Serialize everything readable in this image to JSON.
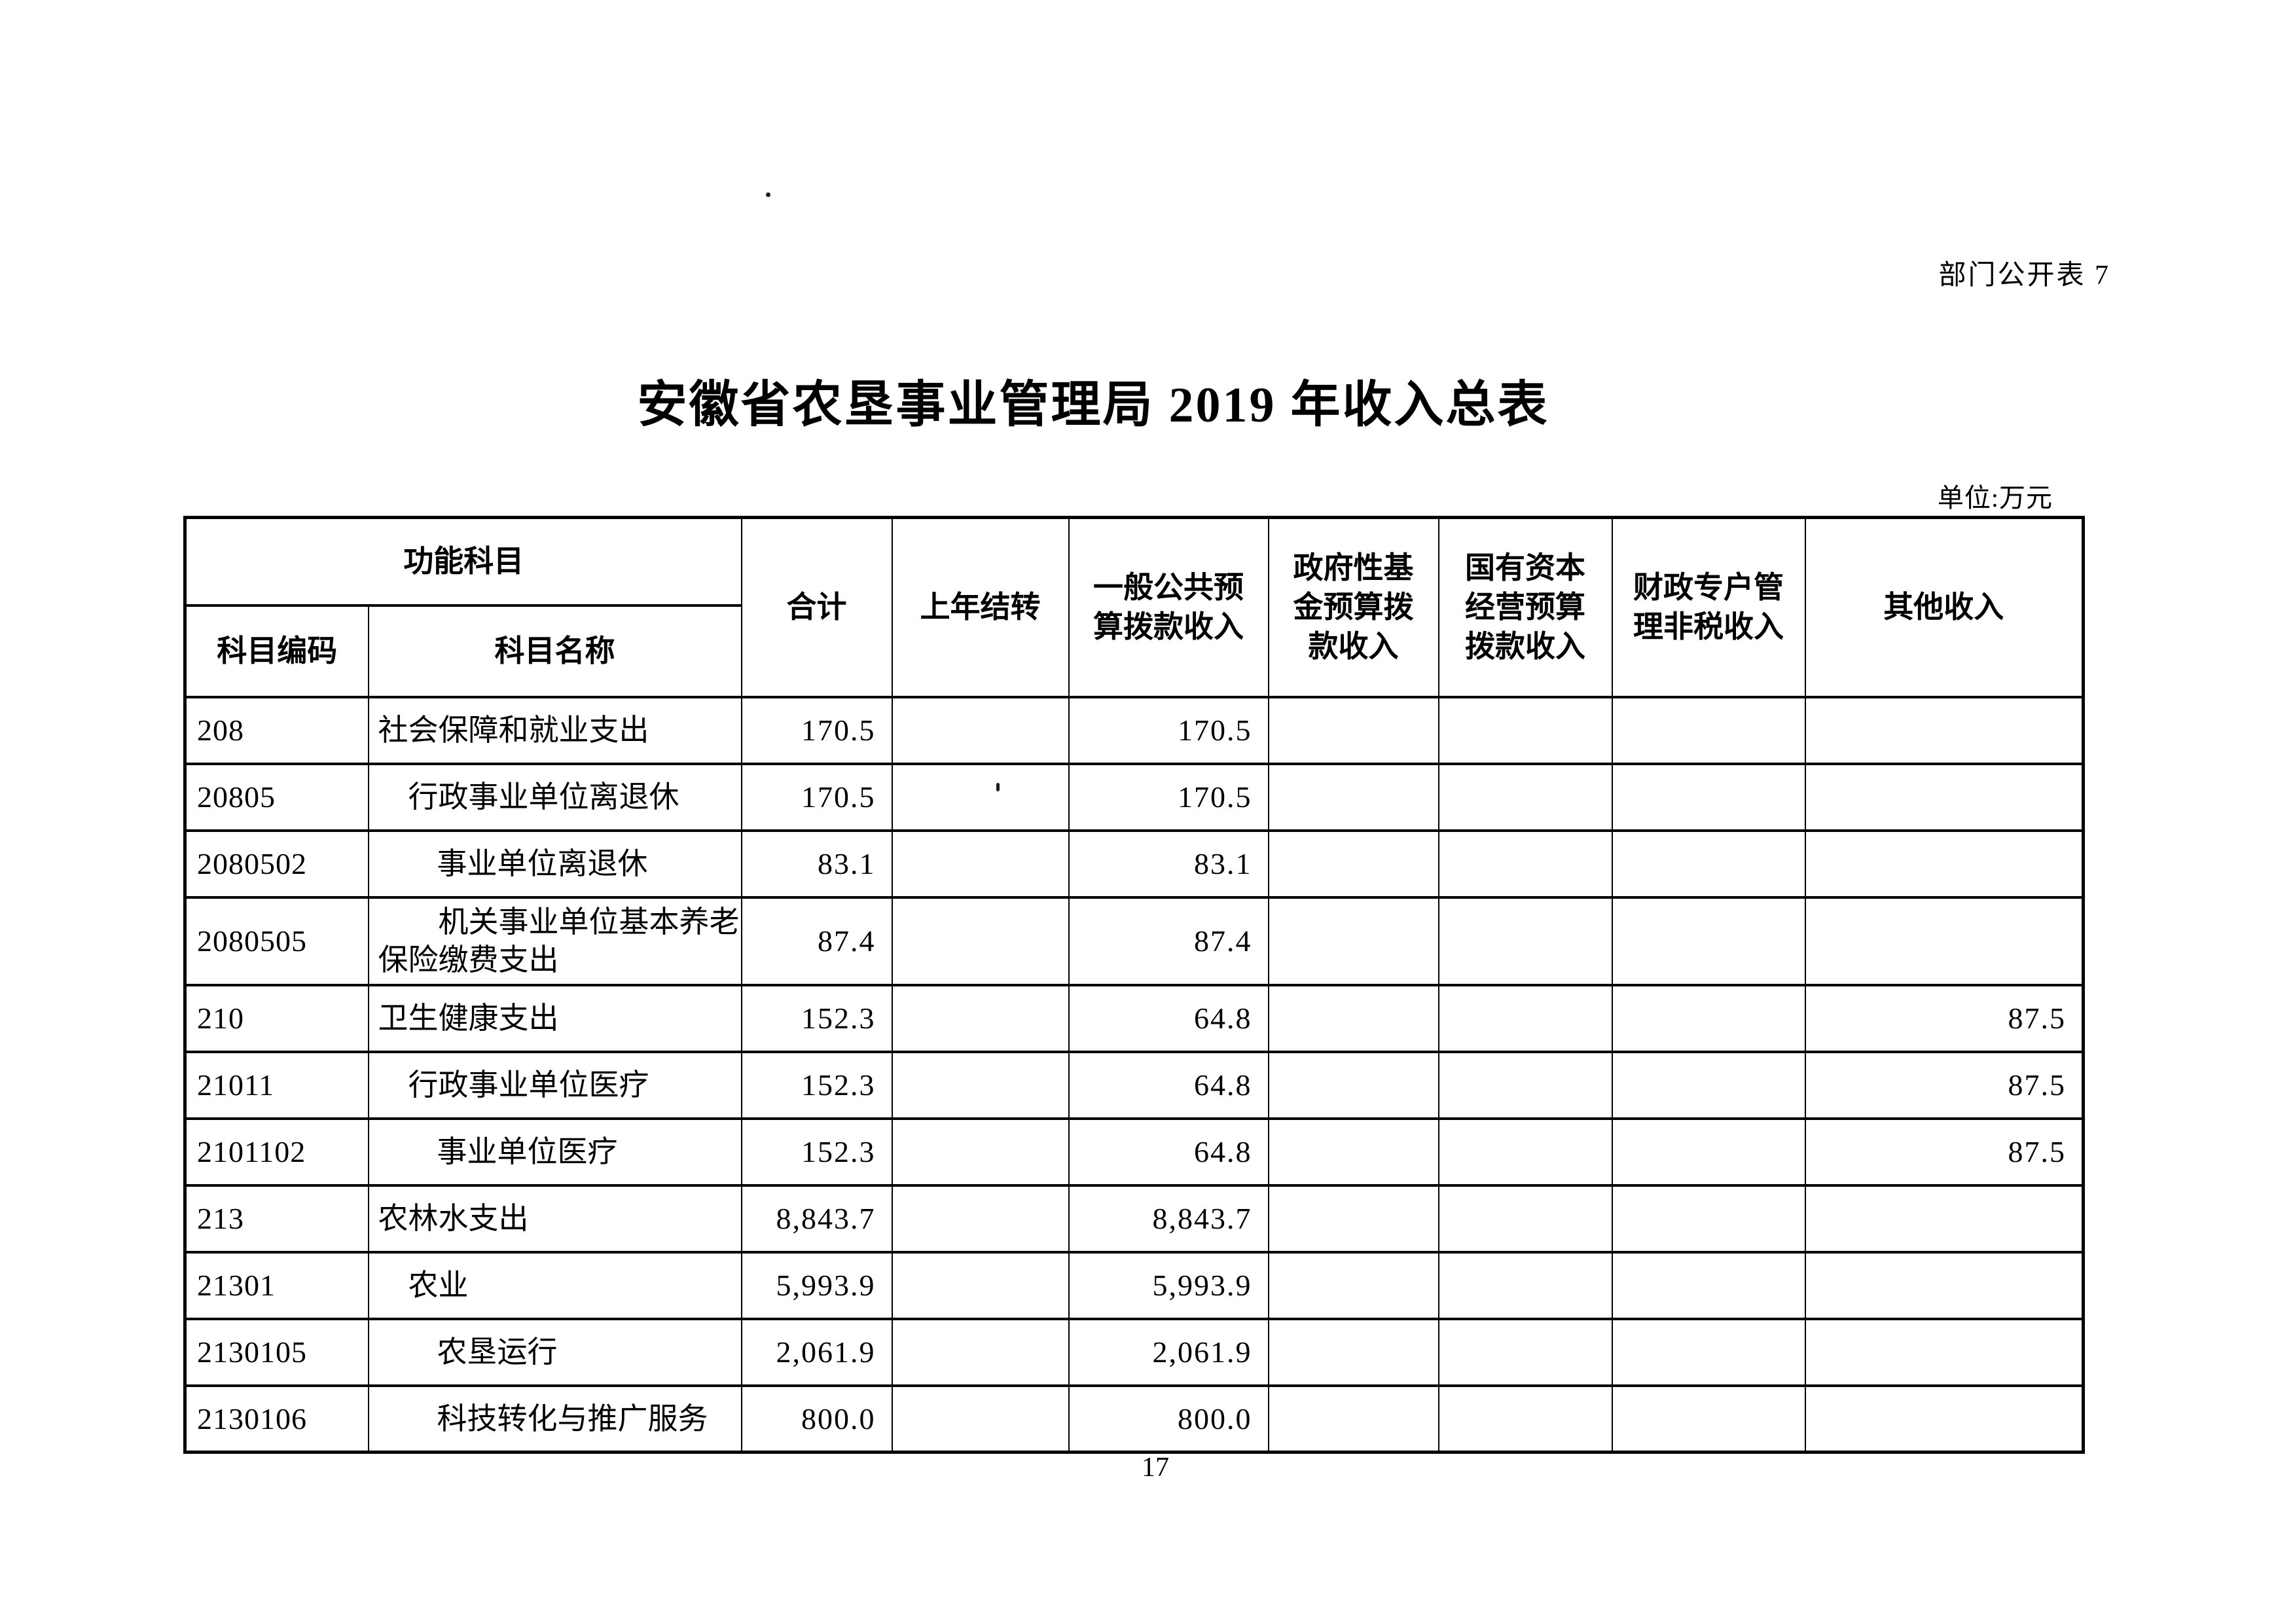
{
  "page": {
    "doc_label": "部门公开表 7",
    "title": "安徽省农垦事业管理局 2019 年收入总表",
    "unit_note": "单位:万元",
    "page_number": "17"
  },
  "table": {
    "header": {
      "group": "功能科目",
      "sub": [
        "科目编码",
        "科目名称"
      ],
      "columns": [
        "合计",
        "上年结转",
        "一般公共预算拨款收入",
        "政府性基金预算拨款收入",
        "国有资本经营预算拨款收入",
        "财政专户管理非税收入",
        "其他收入"
      ]
    },
    "rows": [
      {
        "code": "208",
        "name": "社会保障和就业支出",
        "indent": 0,
        "wrap": false,
        "total": "170.5",
        "carryover": "",
        "general_public": "170.5",
        "gov_fund": "",
        "state_capital": "",
        "fiscal_account": "",
        "other": ""
      },
      {
        "code": "20805",
        "name": "行政事业单位离退休",
        "indent": 1,
        "wrap": false,
        "total": "170.5",
        "carryover": "",
        "general_public": "170.5",
        "gov_fund": "",
        "state_capital": "",
        "fiscal_account": "",
        "other": ""
      },
      {
        "code": "2080502",
        "name": "事业单位离退休",
        "indent": 2,
        "wrap": false,
        "total": "83.1",
        "carryover": "",
        "general_public": "83.1",
        "gov_fund": "",
        "state_capital": "",
        "fiscal_account": "",
        "other": ""
      },
      {
        "code": "2080505",
        "name": "机关事业单位基本养老保险缴费支出",
        "indent": 2,
        "wrap": true,
        "total": "87.4",
        "carryover": "",
        "general_public": "87.4",
        "gov_fund": "",
        "state_capital": "",
        "fiscal_account": "",
        "other": ""
      },
      {
        "code": "210",
        "name": "卫生健康支出",
        "indent": 0,
        "wrap": false,
        "total": "152.3",
        "carryover": "",
        "general_public": "64.8",
        "gov_fund": "",
        "state_capital": "",
        "fiscal_account": "",
        "other": "87.5"
      },
      {
        "code": "21011",
        "name": "行政事业单位医疗",
        "indent": 1,
        "wrap": false,
        "total": "152.3",
        "carryover": "",
        "general_public": "64.8",
        "gov_fund": "",
        "state_capital": "",
        "fiscal_account": "",
        "other": "87.5"
      },
      {
        "code": "2101102",
        "name": "事业单位医疗",
        "indent": 2,
        "wrap": false,
        "total": "152.3",
        "carryover": "",
        "general_public": "64.8",
        "gov_fund": "",
        "state_capital": "",
        "fiscal_account": "",
        "other": "87.5"
      },
      {
        "code": "213",
        "name": "农林水支出",
        "indent": 0,
        "wrap": false,
        "total": "8,843.7",
        "carryover": "",
        "general_public": "8,843.7",
        "gov_fund": "",
        "state_capital": "",
        "fiscal_account": "",
        "other": ""
      },
      {
        "code": "21301",
        "name": "农业",
        "indent": 1,
        "wrap": false,
        "total": "5,993.9",
        "carryover": "",
        "general_public": "5,993.9",
        "gov_fund": "",
        "state_capital": "",
        "fiscal_account": "",
        "other": ""
      },
      {
        "code": "2130105",
        "name": "农垦运行",
        "indent": 2,
        "wrap": false,
        "total": "2,061.9",
        "carryover": "",
        "general_public": "2,061.9",
        "gov_fund": "",
        "state_capital": "",
        "fiscal_account": "",
        "other": ""
      },
      {
        "code": "2130106",
        "name": "科技转化与推广服务",
        "indent": 2,
        "wrap": false,
        "total": "800.0",
        "carryover": "",
        "general_public": "800.0",
        "gov_fund": "",
        "state_capital": "",
        "fiscal_account": "",
        "other": ""
      }
    ]
  }
}
